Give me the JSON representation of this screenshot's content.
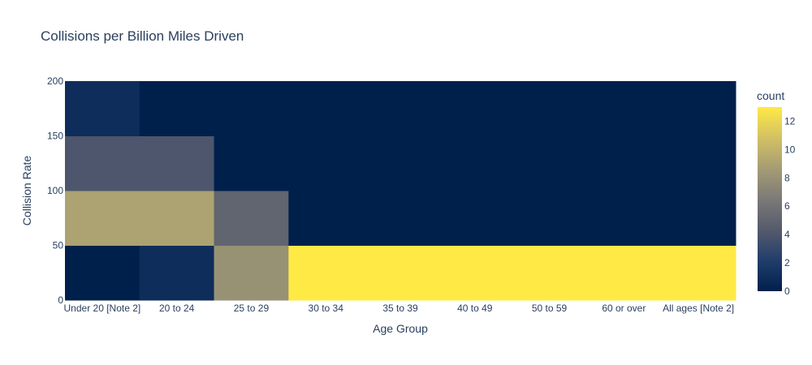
{
  "chart_data": {
    "type": "heatmap",
    "title": "Collisions per Billion Miles Driven",
    "xlabel": "Age Group",
    "ylabel": "Collision Rate",
    "x_categories": [
      "Under 20 [Note 2]",
      "20 to 24",
      "25 to 29",
      "30 to 34",
      "35 to 39",
      "40 to 49",
      "50 to 59",
      "60 or over",
      "All ages [Note 2]"
    ],
    "y_bins": [
      [
        0,
        50
      ],
      [
        50,
        100
      ],
      [
        100,
        150
      ],
      [
        150,
        200
      ]
    ],
    "y_ticks": [
      0,
      50,
      100,
      150,
      200
    ],
    "ylim": [
      0,
      200
    ],
    "z": [
      [
        0,
        1,
        8,
        13,
        13,
        13,
        13,
        13,
        13
      ],
      [
        9,
        9,
        5,
        0,
        0,
        0,
        0,
        0,
        0
      ],
      [
        4,
        4,
        0,
        0,
        0,
        0,
        0,
        0,
        0
      ],
      [
        1,
        0,
        0,
        0,
        0,
        0,
        0,
        0,
        0
      ]
    ],
    "colorbar": {
      "title": "count",
      "min": 0,
      "max": 13,
      "ticks": [
        0,
        2,
        4,
        6,
        8,
        10,
        12
      ]
    },
    "colorscale": [
      "#00204c",
      "#213d6b",
      "#555b6c",
      "#7b7a77",
      "#a59c74",
      "#d3c164",
      "#ffe945"
    ],
    "grid": false
  }
}
